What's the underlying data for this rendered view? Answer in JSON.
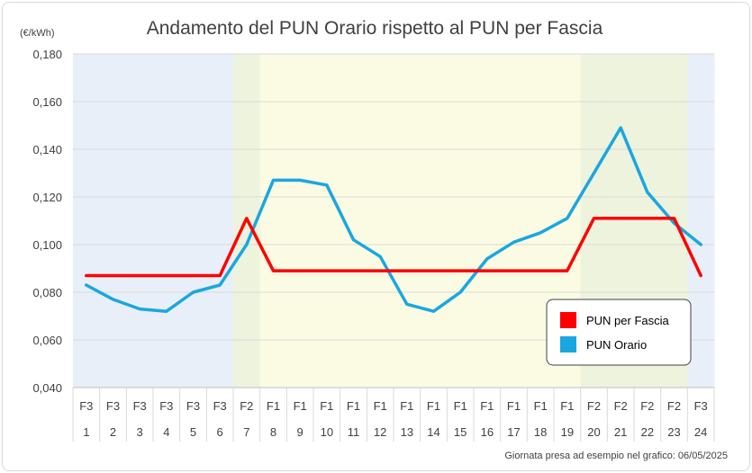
{
  "chart_data": {
    "type": "line",
    "title": "Andamento del PUN Orario rispetto al PUN per Fascia",
    "ylabel": "(€/kWh)",
    "ylim": [
      0.04,
      0.18
    ],
    "yticks": [
      "0,040",
      "0,060",
      "0,080",
      "0,100",
      "0,120",
      "0,140",
      "0,160",
      "0,180"
    ],
    "categories": [
      "1",
      "2",
      "3",
      "4",
      "5",
      "6",
      "7",
      "8",
      "9",
      "10",
      "11",
      "12",
      "13",
      "14",
      "15",
      "16",
      "17",
      "18",
      "19",
      "20",
      "21",
      "22",
      "23",
      "24"
    ],
    "bands": [
      "F3",
      "F3",
      "F3",
      "F3",
      "F3",
      "F3",
      "F2",
      "F1",
      "F1",
      "F1",
      "F1",
      "F1",
      "F1",
      "F1",
      "F1",
      "F1",
      "F1",
      "F1",
      "F1",
      "F2",
      "F2",
      "F2",
      "F2",
      "F3"
    ],
    "band_colors": {
      "F3": "#e9eff8",
      "F2": "#eef3dd",
      "F1": "#fbfbe3"
    },
    "series": [
      {
        "name": "PUN per Fascia",
        "color": "#ff0000",
        "values": [
          0.087,
          0.087,
          0.087,
          0.087,
          0.087,
          0.087,
          0.111,
          0.089,
          0.089,
          0.089,
          0.089,
          0.089,
          0.089,
          0.089,
          0.089,
          0.089,
          0.089,
          0.089,
          0.089,
          0.111,
          0.111,
          0.111,
          0.111,
          0.087
        ]
      },
      {
        "name": "PUN Orario",
        "color": "#1aa7e0",
        "values": [
          0.083,
          0.077,
          0.073,
          0.072,
          0.08,
          0.083,
          0.1,
          0.127,
          0.127,
          0.125,
          0.102,
          0.095,
          0.075,
          0.072,
          0.08,
          0.094,
          0.101,
          0.105,
          0.111,
          0.13,
          0.149,
          0.122,
          0.109,
          0.1
        ]
      }
    ],
    "legend_position": "bottom-right",
    "grid": true,
    "footnote": "Giornata presa ad esempio nel grafico: 06/05/2025"
  }
}
